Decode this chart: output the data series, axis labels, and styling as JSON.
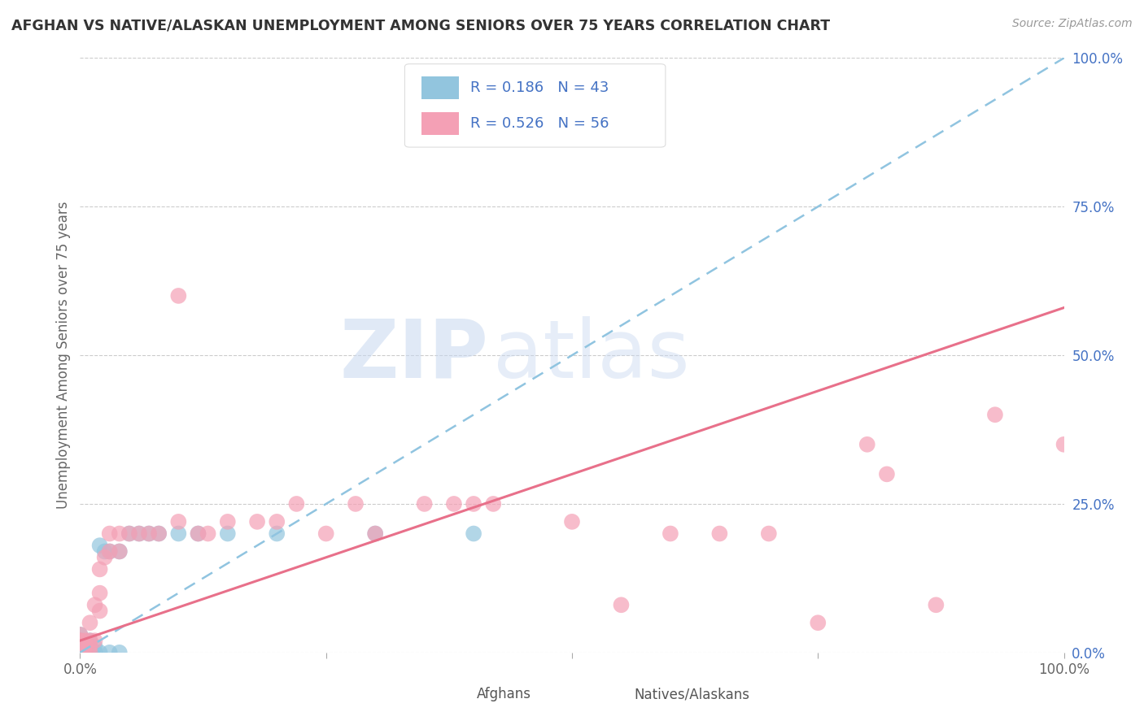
{
  "title": "AFGHAN VS NATIVE/ALASKAN UNEMPLOYMENT AMONG SENIORS OVER 75 YEARS CORRELATION CHART",
  "source": "Source: ZipAtlas.com",
  "ylabel": "Unemployment Among Seniors over 75 years",
  "xlim": [
    0,
    1
  ],
  "ylim": [
    0,
    1
  ],
  "ytick_labels": [
    "0.0%",
    "25.0%",
    "50.0%",
    "75.0%",
    "100.0%"
  ],
  "ytick_vals": [
    0.0,
    0.25,
    0.5,
    0.75,
    1.0
  ],
  "watermark_zip": "ZIP",
  "watermark_atlas": "atlas",
  "afghan_color": "#92c5de",
  "native_color": "#f4a0b5",
  "afghan_line_color": "#90c4e0",
  "native_line_color": "#e8708a",
  "r_afghan": 0.186,
  "n_afghan": 43,
  "r_native": 0.526,
  "n_native": 56,
  "background_color": "#ffffff",
  "grid_color": "#cccccc",
  "title_color": "#333333",
  "legend_text_color": "#4472c4",
  "axis_tick_color": "#4472c4",
  "afghan_scatter": [
    [
      0.0,
      0.0
    ],
    [
      0.0,
      0.0
    ],
    [
      0.0,
      0.0
    ],
    [
      0.0,
      0.0
    ],
    [
      0.0,
      0.0
    ],
    [
      0.0,
      0.0
    ],
    [
      0.0,
      0.0
    ],
    [
      0.0,
      0.01
    ],
    [
      0.0,
      0.01
    ],
    [
      0.0,
      0.02
    ],
    [
      0.0,
      0.02
    ],
    [
      0.0,
      0.03
    ],
    [
      0.0,
      0.0
    ],
    [
      0.0,
      0.0
    ],
    [
      0.0,
      0.0
    ],
    [
      0.0,
      0.0
    ],
    [
      0.0,
      0.0
    ],
    [
      0.0,
      0.0
    ],
    [
      0.005,
      0.0
    ],
    [
      0.005,
      0.01
    ],
    [
      0.01,
      0.0
    ],
    [
      0.01,
      0.0
    ],
    [
      0.01,
      0.01
    ],
    [
      0.01,
      0.02
    ],
    [
      0.015,
      0.0
    ],
    [
      0.015,
      0.01
    ],
    [
      0.02,
      0.0
    ],
    [
      0.02,
      0.18
    ],
    [
      0.025,
      0.17
    ],
    [
      0.03,
      0.17
    ],
    [
      0.03,
      0.0
    ],
    [
      0.04,
      0.0
    ],
    [
      0.04,
      0.17
    ],
    [
      0.05,
      0.2
    ],
    [
      0.06,
      0.2
    ],
    [
      0.07,
      0.2
    ],
    [
      0.08,
      0.2
    ],
    [
      0.1,
      0.2
    ],
    [
      0.12,
      0.2
    ],
    [
      0.15,
      0.2
    ],
    [
      0.2,
      0.2
    ],
    [
      0.3,
      0.2
    ],
    [
      0.4,
      0.2
    ]
  ],
  "native_scatter": [
    [
      0.0,
      0.0
    ],
    [
      0.0,
      0.0
    ],
    [
      0.0,
      0.0
    ],
    [
      0.0,
      0.0
    ],
    [
      0.0,
      0.01
    ],
    [
      0.0,
      0.01
    ],
    [
      0.0,
      0.02
    ],
    [
      0.0,
      0.02
    ],
    [
      0.0,
      0.03
    ],
    [
      0.005,
      0.0
    ],
    [
      0.005,
      0.01
    ],
    [
      0.005,
      0.02
    ],
    [
      0.01,
      0.0
    ],
    [
      0.01,
      0.01
    ],
    [
      0.01,
      0.02
    ],
    [
      0.01,
      0.05
    ],
    [
      0.015,
      0.02
    ],
    [
      0.015,
      0.08
    ],
    [
      0.02,
      0.07
    ],
    [
      0.02,
      0.1
    ],
    [
      0.02,
      0.14
    ],
    [
      0.025,
      0.16
    ],
    [
      0.03,
      0.17
    ],
    [
      0.03,
      0.2
    ],
    [
      0.04,
      0.17
    ],
    [
      0.04,
      0.2
    ],
    [
      0.05,
      0.2
    ],
    [
      0.06,
      0.2
    ],
    [
      0.07,
      0.2
    ],
    [
      0.08,
      0.2
    ],
    [
      0.1,
      0.22
    ],
    [
      0.1,
      0.6
    ],
    [
      0.12,
      0.2
    ],
    [
      0.13,
      0.2
    ],
    [
      0.15,
      0.22
    ],
    [
      0.18,
      0.22
    ],
    [
      0.2,
      0.22
    ],
    [
      0.22,
      0.25
    ],
    [
      0.25,
      0.2
    ],
    [
      0.28,
      0.25
    ],
    [
      0.3,
      0.2
    ],
    [
      0.35,
      0.25
    ],
    [
      0.38,
      0.25
    ],
    [
      0.4,
      0.25
    ],
    [
      0.42,
      0.25
    ],
    [
      0.5,
      0.22
    ],
    [
      0.55,
      0.08
    ],
    [
      0.6,
      0.2
    ],
    [
      0.65,
      0.2
    ],
    [
      0.7,
      0.2
    ],
    [
      0.75,
      0.05
    ],
    [
      0.8,
      0.35
    ],
    [
      0.82,
      0.3
    ],
    [
      0.87,
      0.08
    ],
    [
      0.93,
      0.4
    ],
    [
      1.0,
      0.35
    ]
  ]
}
